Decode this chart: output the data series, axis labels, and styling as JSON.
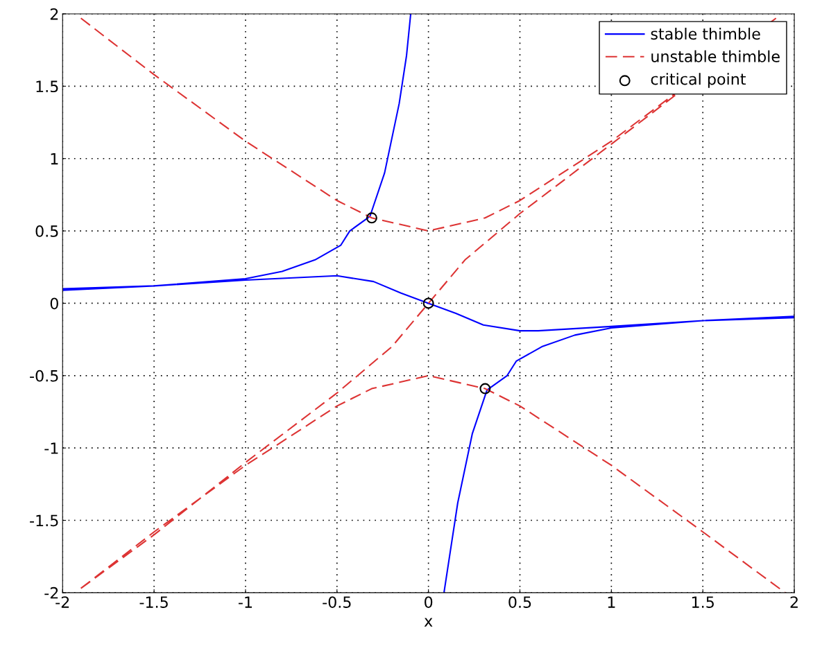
{
  "chart_data": {
    "type": "line",
    "xlabel": "x",
    "xlim": [
      -2,
      2
    ],
    "ylim": [
      -2,
      2
    ],
    "xticks": [
      {
        "value": -2,
        "label": "-2"
      },
      {
        "value": -1.5,
        "label": "-1.5"
      },
      {
        "value": -1,
        "label": "-1"
      },
      {
        "value": -0.5,
        "label": "-0.5"
      },
      0,
      0.5,
      1,
      1.5,
      2
    ],
    "yticks": [
      {
        "value": -2,
        "label": "-2"
      },
      {
        "value": -1.5,
        "label": "-1.5"
      },
      {
        "value": -1,
        "label": "-1"
      },
      {
        "value": -0.5,
        "label": "-0.5"
      },
      0,
      0.5,
      1,
      1.5,
      2
    ],
    "grid": true,
    "legend": "top right",
    "series": [
      {
        "name": "stable thimble",
        "color": "#0000ff",
        "line_style": "solid",
        "marker": "none",
        "x": [
          -2,
          -1.5,
          -1,
          -0.8,
          -0.62,
          -0.48,
          -0.43,
          -0.32,
          -0.24,
          -0.16,
          -0.12,
          -0.097,
          null,
          -2,
          -1.5,
          -1,
          -0.5,
          -0.3,
          -0.15,
          0,
          0.15,
          0.3,
          0.5,
          0.6,
          1,
          1.5,
          2,
          null,
          2,
          1.5,
          1,
          0.8,
          0.62,
          0.48,
          0.43,
          0.32,
          0.24,
          0.16,
          0.12,
          0.085
        ],
        "values": [
          0.1,
          0.12,
          0.17,
          0.22,
          0.3,
          0.4,
          0.5,
          0.6,
          0.9,
          1.38,
          1.71,
          2,
          null,
          0.09,
          0.12,
          0.16,
          0.19,
          0.15,
          0.07,
          0,
          -0.07,
          -0.15,
          -0.19,
          -0.19,
          -0.16,
          -0.12,
          -0.09,
          null,
          -0.1,
          -0.12,
          -0.17,
          -0.22,
          -0.3,
          -0.4,
          -0.5,
          -0.6,
          -0.9,
          -1.38,
          -1.71,
          -2
        ]
      },
      {
        "name": "unstable thimble",
        "color": "#dd3333",
        "line_style": "dashed",
        "marker": "none",
        "x": [
          -1.9,
          -1.5,
          -1,
          -0.5,
          -0.31,
          0,
          0.31,
          0.5,
          1,
          1.9,
          null,
          -1.9,
          -1.5,
          -1,
          -0.5,
          -0.31,
          0,
          0.31,
          0.5,
          1,
          1.5,
          1.95,
          null,
          -1.9,
          -1.5,
          -1,
          -0.5,
          -0.2,
          0,
          0.2,
          0.5,
          1,
          1.9
        ],
        "values": [
          1.97,
          1.58,
          1.12,
          0.71,
          0.59,
          0.5,
          0.59,
          0.71,
          1.12,
          1.97,
          null,
          -1.97,
          -1.58,
          -1.12,
          -0.71,
          -0.59,
          -0.5,
          -0.59,
          -0.71,
          -1.12,
          -1.58,
          -2,
          null,
          -1.97,
          -1.6,
          -1.1,
          -0.62,
          -0.3,
          0,
          0.3,
          0.62,
          1.1,
          1.97
        ]
      },
      {
        "name": "critical point",
        "type": "scatter",
        "color": "#000000",
        "marker": "circle",
        "x": [
          -0.31,
          0,
          0.31
        ],
        "values": [
          0.59,
          0,
          -0.59
        ]
      }
    ]
  }
}
